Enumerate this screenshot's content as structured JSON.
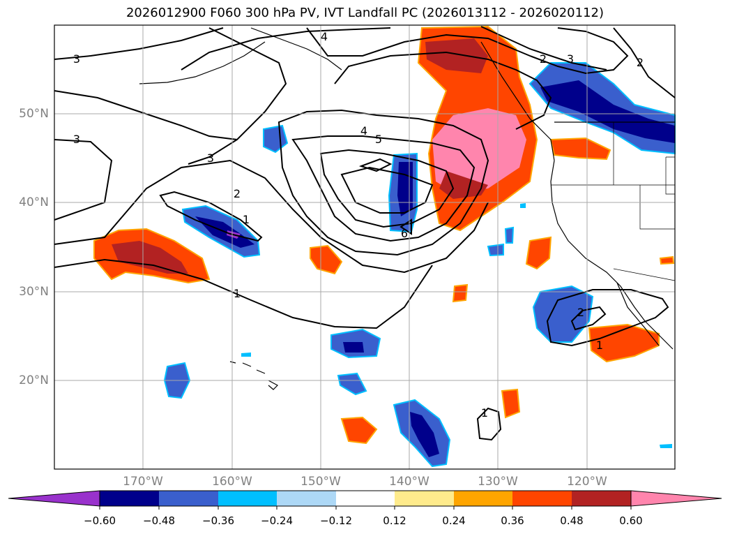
{
  "title": "2026012900 F060 300 hPa PV, IVT Landfall PC (2026013112 - 2026020112)",
  "map": {
    "lon_range": [
      -180,
      -110
    ],
    "lat_range": [
      10,
      60
    ],
    "lat_labels": [
      "50°N",
      "40°N",
      "30°N",
      "20°N"
    ],
    "lon_labels": [
      "170°W",
      "160°W",
      "150°W",
      "140°W",
      "130°W",
      "120°W"
    ],
    "contour_labels": [
      "4",
      "3",
      "3",
      "3",
      "4",
      "5",
      "2",
      "1",
      "1",
      "6",
      "2",
      "2",
      "2",
      "3",
      "1",
      "1"
    ]
  },
  "colorbar": {
    "tick_labels": [
      "−0.60",
      "−0.48",
      "−0.36",
      "−0.24",
      "−0.12",
      "0.12",
      "0.24",
      "0.36",
      "0.48",
      "0.60"
    ],
    "colors": [
      "#9932cc",
      "#00008b",
      "#3a5fcd",
      "#00bfff",
      "#add8f6",
      "#ffffff",
      "#ffeb8c",
      "#ffa500",
      "#ff4500",
      "#b22222",
      "#ff85ad"
    ]
  },
  "colors": {
    "grid": "#a9a9a9",
    "contour": "#000000",
    "frame": "#000000"
  }
}
